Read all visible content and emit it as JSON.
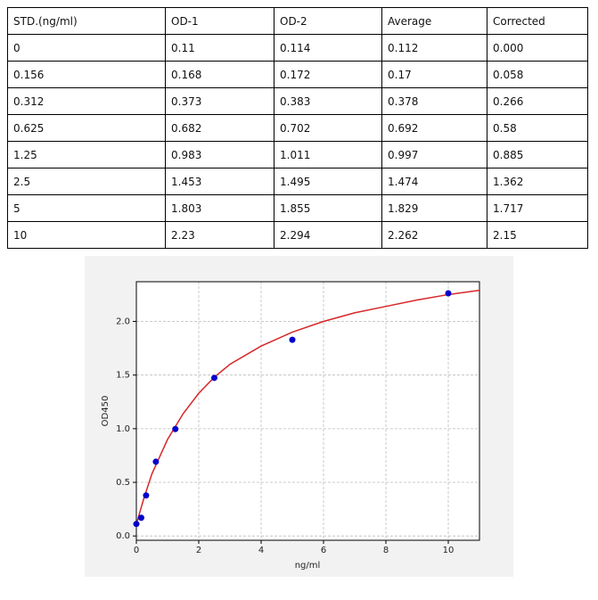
{
  "table": {
    "header": [
      "STD.(ng/ml)",
      "OD-1",
      "OD-2",
      "Average",
      "Corrected"
    ],
    "rows": [
      [
        "0",
        "0.11",
        "0.114",
        "0.112",
        "0.000"
      ],
      [
        "0.156",
        "0.168",
        "0.172",
        "0.17",
        "0.058"
      ],
      [
        "0.312",
        "0.373",
        "0.383",
        "0.378",
        "0.266"
      ],
      [
        "0.625",
        "0.682",
        "0.702",
        "0.692",
        "0.58"
      ],
      [
        "1.25",
        "0.983",
        "1.011",
        "0.997",
        "0.885"
      ],
      [
        "2.5",
        "1.453",
        "1.495",
        "1.474",
        "1.362"
      ],
      [
        "5",
        "1.803",
        "1.855",
        "1.829",
        "1.717"
      ],
      [
        "10",
        "2.23",
        "2.294",
        "2.262",
        "2.15"
      ]
    ]
  },
  "chart_data": {
    "type": "scatter",
    "xlabel": "ng/ml",
    "ylabel": "OD450",
    "xlim": [
      0,
      11
    ],
    "ylim": [
      -0.04,
      2.37
    ],
    "xticks": [
      0,
      2,
      4,
      6,
      8,
      10
    ],
    "yticks": [
      {
        "value": 0,
        "label": "0.0"
      },
      {
        "value": 0.5,
        "label": "0.5"
      },
      {
        "value": 1,
        "label": "1.0"
      },
      {
        "value": 1.5,
        "label": "1.5"
      },
      {
        "value": 2,
        "label": "2.0"
      }
    ],
    "grid": true,
    "series": [
      {
        "color": "#0000cd",
        "x": [
          0,
          0.156,
          0.312,
          0.625,
          1.25,
          2.5,
          5,
          10
        ],
        "values": [
          0.112,
          0.17,
          0.378,
          0.692,
          0.997,
          1.474,
          1.829,
          2.262
        ]
      }
    ],
    "fit": {
      "color": "#d62728",
      "x": [
        0,
        0.25,
        0.5,
        1,
        1.5,
        2,
        2.5,
        3,
        4,
        5,
        6,
        7,
        8,
        9,
        10,
        11
      ],
      "values": [
        0.11,
        0.36,
        0.58,
        0.9,
        1.14,
        1.33,
        1.48,
        1.6,
        1.77,
        1.9,
        2.0,
        2.08,
        2.14,
        2.2,
        2.25,
        2.29
      ]
    }
  }
}
